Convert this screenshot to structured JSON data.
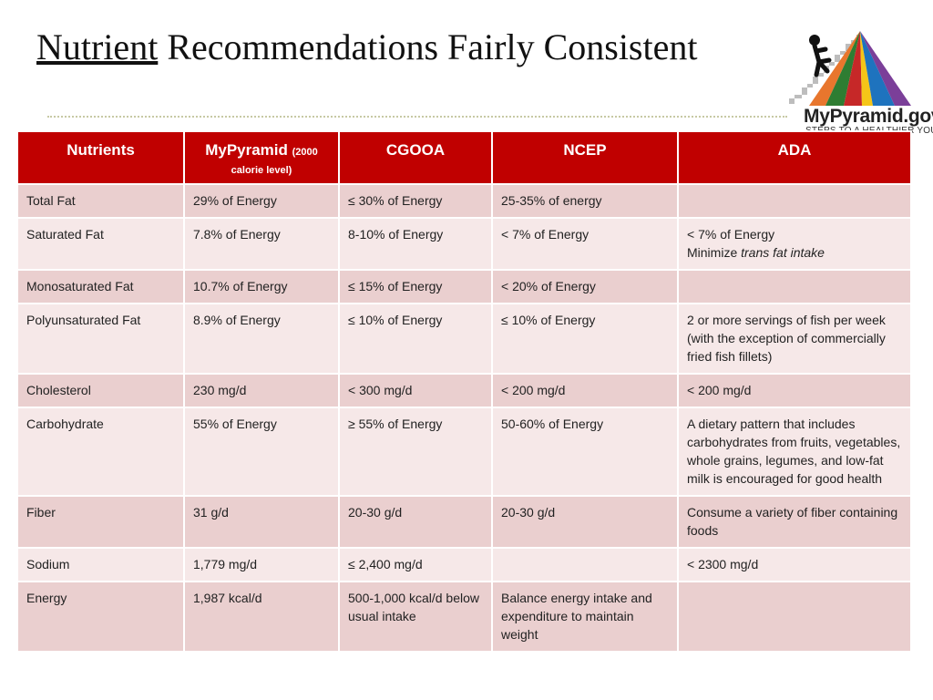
{
  "slide": {
    "title_underlined": "Nutrient",
    "title_rest": " Recommendations Fairly Consistent"
  },
  "logo": {
    "brand": "MyPyramid.gov",
    "tagline": "STEPS TO A HEALTHIER YOU",
    "colors": [
      "#e8762d",
      "#2e7d32",
      "#c62828",
      "#f5c518",
      "#1e73be",
      "#7b3f99"
    ]
  },
  "table": {
    "headers": {
      "nutrients": "Nutrients",
      "mypyramid": "MyPyramid",
      "mypyramid_note": "(2000 calorie level)",
      "cgooa": "CGOOA",
      "ncep": "NCEP",
      "ada": "ADA"
    },
    "rows": [
      {
        "nutrient": "Total Fat",
        "mypyramid": "29% of Energy",
        "cgooa": "≤ 30% of Energy",
        "ncep": "25-35% of energy",
        "ada": ""
      },
      {
        "nutrient": "Saturated Fat",
        "mypyramid": "7.8% of Energy",
        "cgooa": "8-10% of Energy",
        "ncep": "< 7% of Energy",
        "ada": "< 7% of Energy",
        "ada_line2_prefix": "Minimize ",
        "ada_line2_italic": "trans fat intake"
      },
      {
        "nutrient": "Monosaturated Fat",
        "mypyramid": "10.7% of Energy",
        "cgooa": "≤ 15% of Energy",
        "ncep": "< 20% of Energy",
        "ada": ""
      },
      {
        "nutrient": "Polyunsaturated Fat",
        "mypyramid": "8.9% of Energy",
        "cgooa": "≤ 10% of Energy",
        "ncep": "≤ 10% of Energy",
        "ada": "2 or more servings of fish per week (with the exception of commercially fried fish fillets)"
      },
      {
        "nutrient": "Cholesterol",
        "mypyramid": "230 mg/d",
        "cgooa": "< 300 mg/d",
        "ncep": "< 200 mg/d",
        "ada": "< 200 mg/d"
      },
      {
        "nutrient": "Carbohydrate",
        "mypyramid": "55% of Energy",
        "cgooa": "≥ 55% of Energy",
        "ncep": "50-60% of Energy",
        "ada": "A dietary pattern that includes carbohydrates from fruits, vegetables, whole grains, legumes, and low-fat milk is encouraged for good health"
      },
      {
        "nutrient": "Fiber",
        "mypyramid": "31 g/d",
        "cgooa": "20-30 g/d",
        "ncep": "20-30 g/d",
        "ada": "Consume a variety of fiber containing foods"
      },
      {
        "nutrient": "Sodium",
        "mypyramid": "1,779 mg/d",
        "cgooa": "≤ 2,400 mg/d",
        "ncep": "",
        "ada": "< 2300 mg/d"
      },
      {
        "nutrient": "Energy",
        "mypyramid": "1,987 kcal/d",
        "cgooa": "500-1,000 kcal/d below usual intake",
        "ncep": "Balance energy intake and expenditure to maintain weight",
        "ada": ""
      }
    ]
  }
}
